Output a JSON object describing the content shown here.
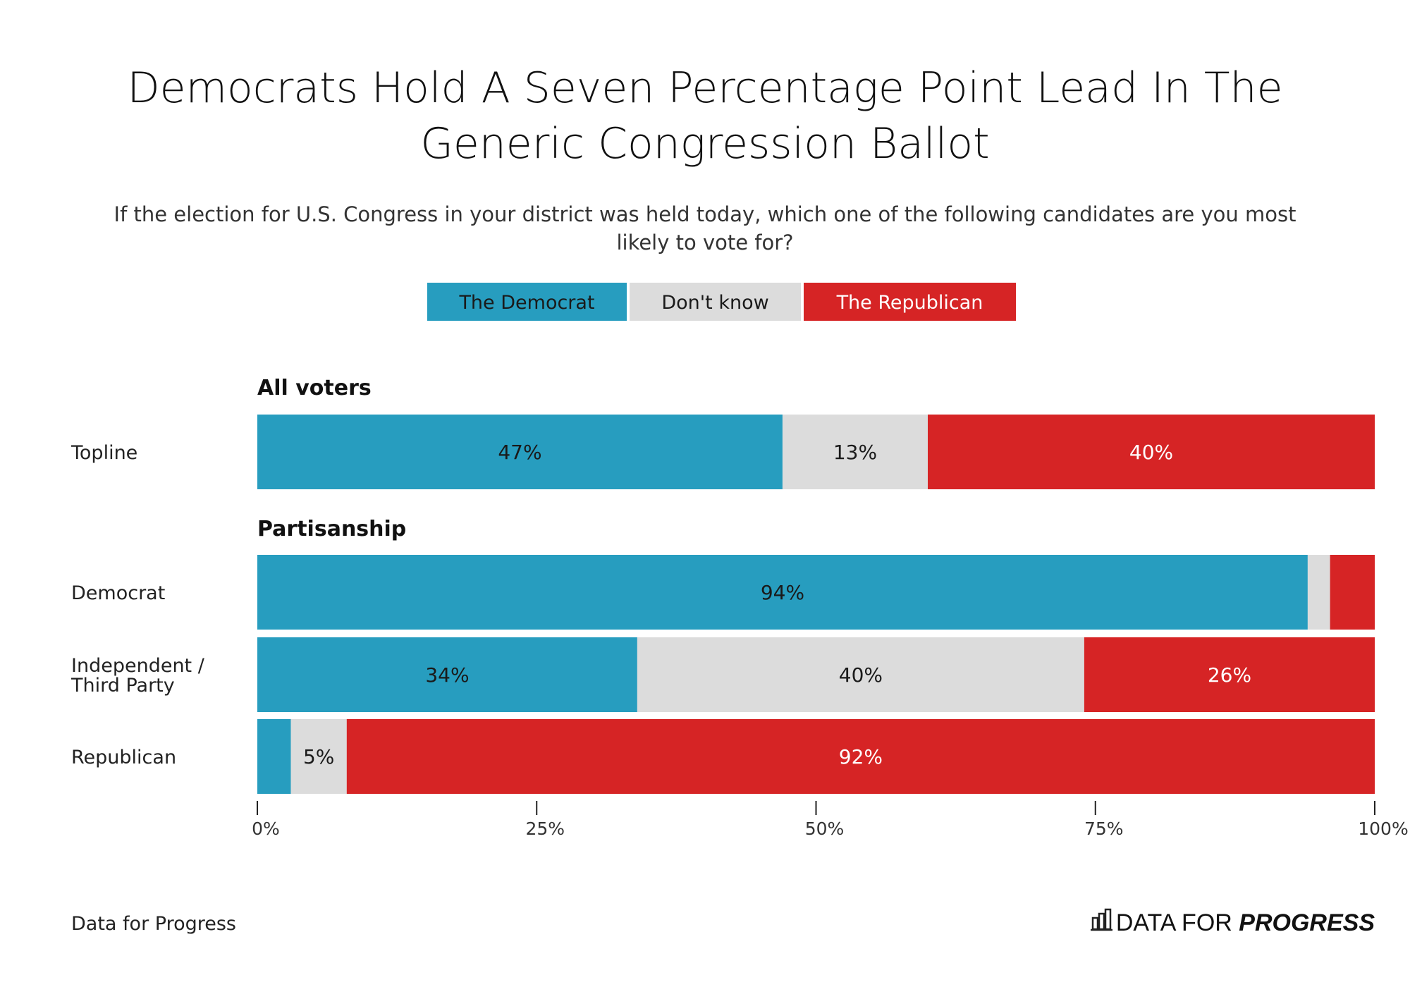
{
  "chart_data": {
    "type": "bar",
    "orientation": "horizontal",
    "stacked": true,
    "title": "Democrats Hold A Seven Percentage Point Lead In The Generic Congression Ballot",
    "title_lines": [
      "Democrats Hold A Seven Percentage Point Lead In The",
      "Generic Congression Ballot"
    ],
    "subtitle": "If the election for U.S. Congress in your district was held today, which one of the following candidates are you most likely to vote for?",
    "subtitle_lines": [
      "If the election for U.S. Congress in your district was held today, which one of the following candidates are you most",
      "likely to vote for?"
    ],
    "legend_position": "top-center",
    "series": [
      {
        "name": "The Democrat",
        "color": "#279dbf",
        "text_color": "#1a1a1a"
      },
      {
        "name": "Don't know",
        "color": "#dcdcdc",
        "text_color": "#1a1a1a"
      },
      {
        "name": "The Republican",
        "color": "#d62425",
        "text_color": "#ffffff"
      }
    ],
    "groups": [
      {
        "name": "All voters",
        "rows": [
          {
            "label": [
              "Topline"
            ],
            "values": [
              47,
              13,
              40
            ]
          }
        ]
      },
      {
        "name": "Partisanship",
        "rows": [
          {
            "label": [
              "Democrat"
            ],
            "values": [
              94,
              2,
              4
            ]
          },
          {
            "label": [
              "Independent /",
              "Third Party"
            ],
            "values": [
              34,
              40,
              26
            ]
          },
          {
            "label": [
              "Republican"
            ],
            "values": [
              3,
              5,
              92
            ]
          }
        ]
      }
    ],
    "xlim": [
      0,
      100
    ],
    "x_ticks": [
      "0%",
      "25%",
      "50%",
      "75%",
      "100%"
    ],
    "grid": false
  },
  "footer": {
    "source": "Data for Progress",
    "logo_text_light": "DATA FOR",
    "logo_text_bold": "PROGRESS"
  }
}
